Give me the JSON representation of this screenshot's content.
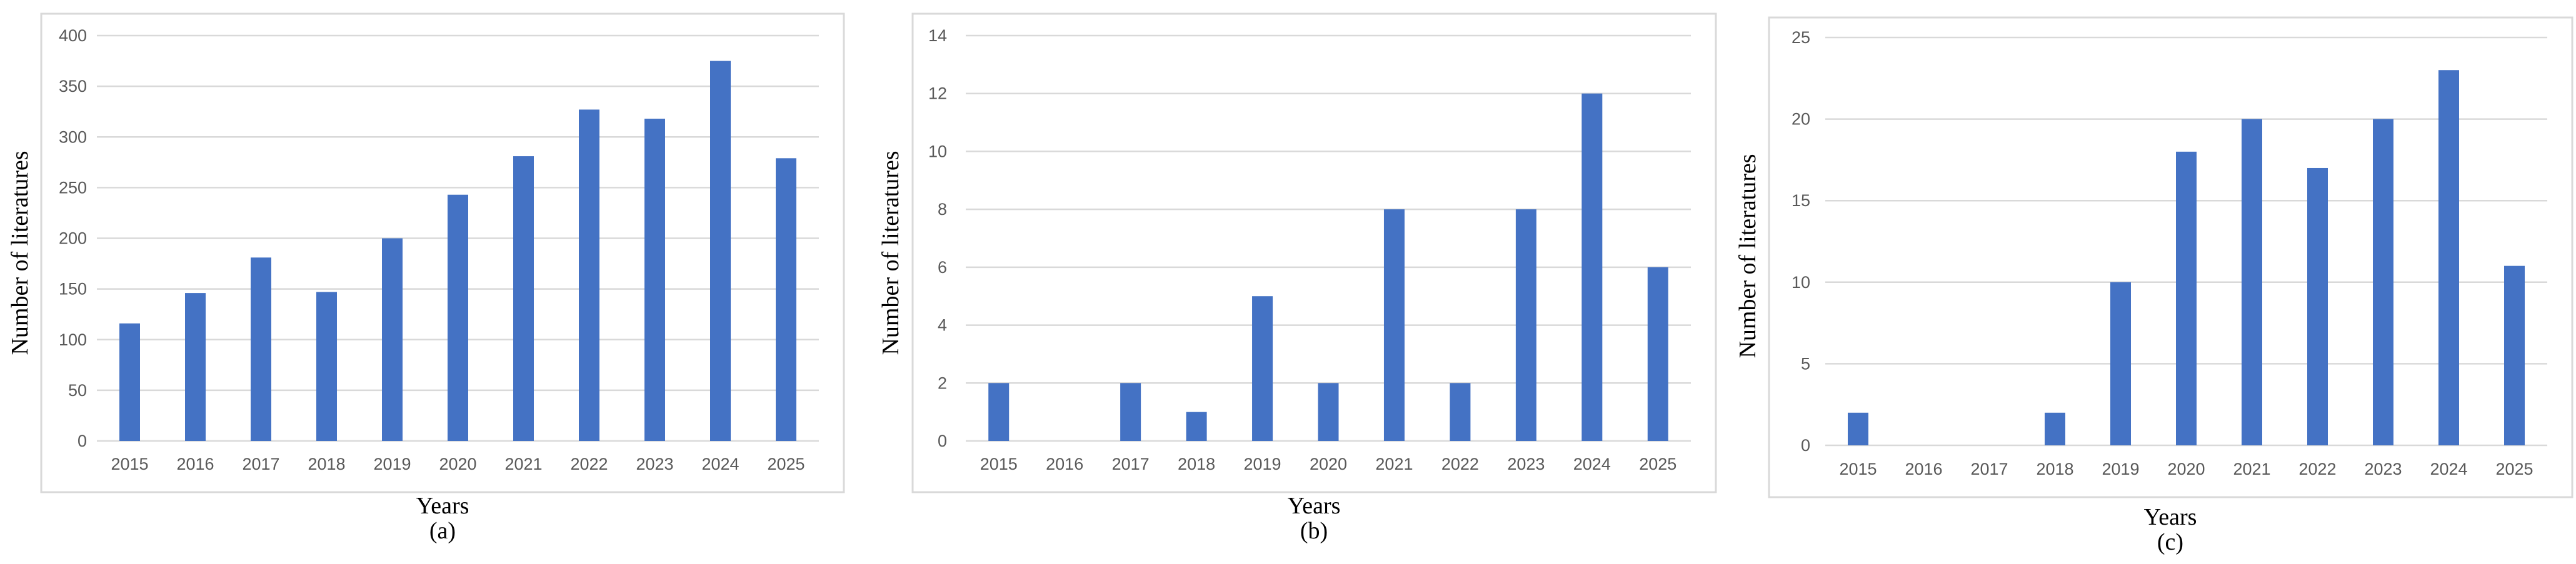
{
  "colors": {
    "bar": "#4472c4",
    "grid": "#d9d9d9",
    "frame": "#d9d9d9",
    "tick_text": "#595959"
  },
  "chart_data": [
    {
      "type": "bar",
      "panel_label": "(a)",
      "xlabel": "Years",
      "ylabel": "Number of literatures",
      "categories": [
        "2015",
        "2016",
        "2017",
        "2018",
        "2019",
        "2020",
        "2021",
        "2022",
        "2023",
        "2024",
        "2025"
      ],
      "values": [
        116,
        146,
        181,
        147,
        200,
        243,
        281,
        327,
        318,
        375,
        279
      ],
      "ylim": [
        0,
        400
      ],
      "yticks": [
        "0",
        "50",
        "100",
        "150",
        "200",
        "250",
        "300",
        "350",
        "400"
      ],
      "grid": true
    },
    {
      "type": "bar",
      "panel_label": "(b)",
      "xlabel": "Years",
      "ylabel": "Number of literatures",
      "categories": [
        "2015",
        "2016",
        "2017",
        "2018",
        "2019",
        "2020",
        "2021",
        "2022",
        "2023",
        "2024",
        "2025"
      ],
      "values": [
        2,
        0,
        2,
        1,
        5,
        2,
        8,
        2,
        8,
        12,
        6
      ],
      "ylim": [
        0,
        14
      ],
      "yticks": [
        "0",
        "2",
        "4",
        "6",
        "8",
        "10",
        "12",
        "14"
      ],
      "grid": true
    },
    {
      "type": "bar",
      "panel_label": "(c)",
      "xlabel": "Years",
      "ylabel": "Number of literatures",
      "categories": [
        "2015",
        "2016",
        "2017",
        "2018",
        "2019",
        "2020",
        "2021",
        "2022",
        "2023",
        "2024",
        "2025"
      ],
      "values": [
        2,
        0,
        0,
        2,
        10,
        18,
        20,
        17,
        20,
        23,
        11
      ],
      "ylim": [
        0,
        25
      ],
      "yticks": [
        "0",
        "5",
        "10",
        "15",
        "20",
        "25"
      ],
      "grid": true
    }
  ]
}
